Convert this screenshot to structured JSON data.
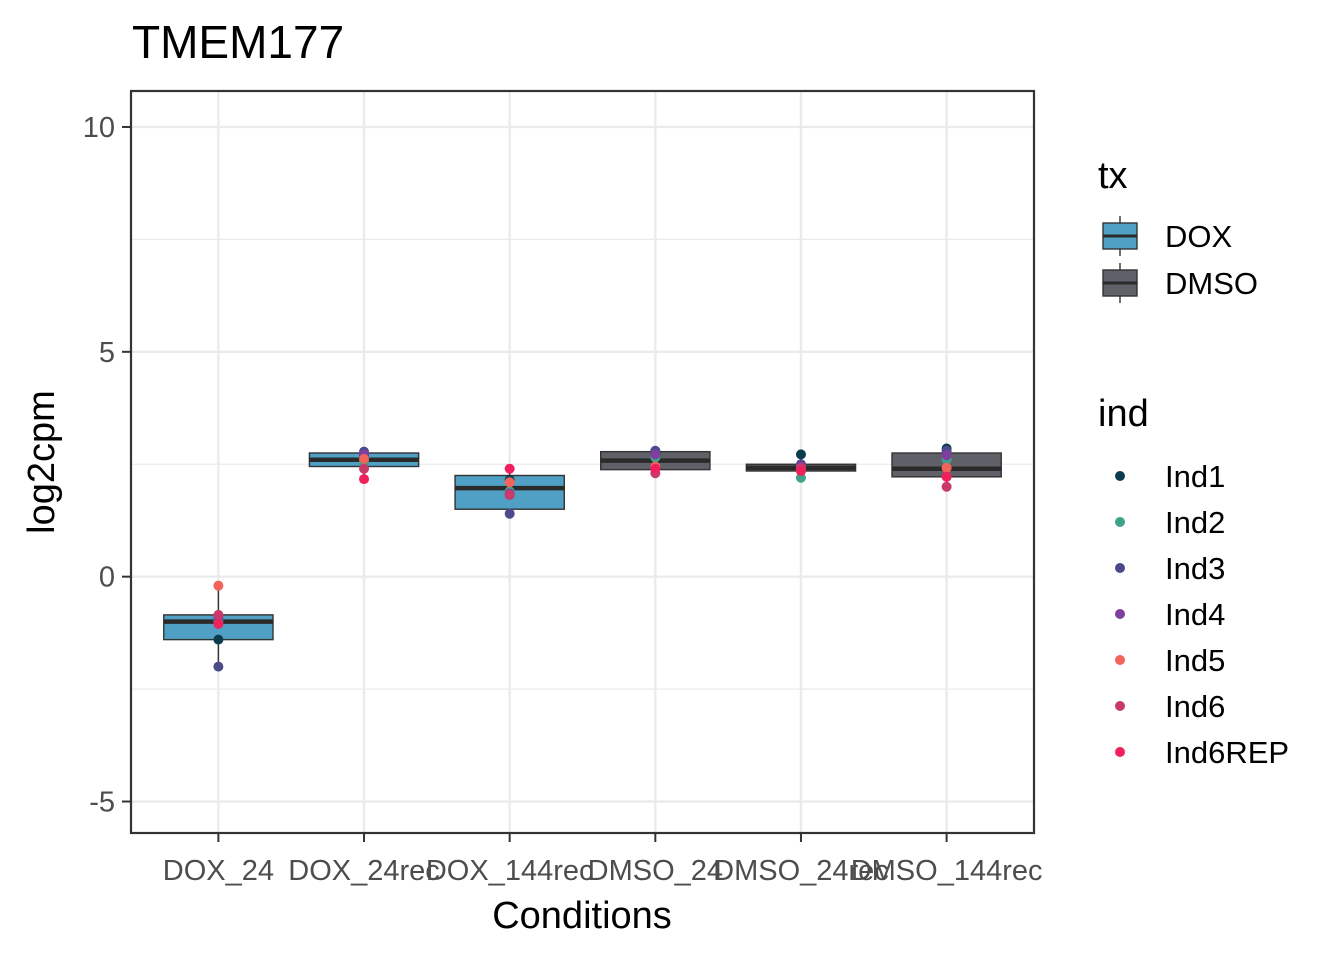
{
  "chart_data": {
    "type": "boxplot",
    "title": "TMEM177",
    "xlabel": "Conditions",
    "ylabel": "log2cpm",
    "ylim": [
      -5.7,
      10.8
    ],
    "yticks": [
      -5,
      0,
      5,
      10
    ],
    "ytick_labels": [
      "-5",
      "0",
      "5",
      "10"
    ],
    "grid": true,
    "legend_position": "right",
    "categories": [
      "DOX_24",
      "DOX_24rec",
      "DOX_144rec",
      "DMSO_24",
      "DMSO_24rec",
      "DMSO_144rec"
    ],
    "tx": {
      "title": "tx",
      "entries": [
        {
          "name": "DOX",
          "color": "#4fa0c4"
        },
        {
          "name": "DMSO",
          "color": "#5f6068"
        }
      ]
    },
    "ind": {
      "title": "ind",
      "entries": [
        {
          "name": "Ind1",
          "color": "#0b3b4f"
        },
        {
          "name": "Ind2",
          "color": "#3fa38a"
        },
        {
          "name": "Ind3",
          "color": "#4b4a8a"
        },
        {
          "name": "Ind4",
          "color": "#7e3fa0"
        },
        {
          "name": "Ind5",
          "color": "#f2645a"
        },
        {
          "name": "Ind6",
          "color": "#c83a6a"
        },
        {
          "name": "Ind6REP",
          "color": "#f0205c"
        }
      ]
    },
    "boxes": [
      {
        "category": "DOX_24",
        "tx": "DOX",
        "q1": -1.4,
        "median": -1.0,
        "q3": -0.85,
        "whisker_low": -2.0,
        "whisker_high": -0.2
      },
      {
        "category": "DOX_24rec",
        "tx": "DOX",
        "q1": 2.45,
        "median": 2.6,
        "q3": 2.75,
        "whisker_low": 2.15,
        "whisker_high": 2.8
      },
      {
        "category": "DOX_144rec",
        "tx": "DOX",
        "q1": 1.5,
        "median": 1.97,
        "q3": 2.25,
        "whisker_low": 1.4,
        "whisker_high": 2.4
      },
      {
        "category": "DMSO_24",
        "tx": "DMSO",
        "q1": 2.38,
        "median": 2.58,
        "q3": 2.78,
        "whisker_low": 2.3,
        "whisker_high": 2.8
      },
      {
        "category": "DMSO_24rec",
        "tx": "DMSO",
        "q1": 2.35,
        "median": 2.42,
        "q3": 2.5,
        "whisker_low": 2.2,
        "whisker_high": 2.72
      },
      {
        "category": "DMSO_144rec",
        "tx": "DMSO",
        "q1": 2.22,
        "median": 2.4,
        "q3": 2.75,
        "whisker_low": 2.0,
        "whisker_high": 2.85
      }
    ],
    "points": [
      {
        "category": "DOX_24",
        "ind": "Ind1",
        "y": -1.4
      },
      {
        "category": "DOX_24",
        "ind": "Ind2",
        "y": -1.0
      },
      {
        "category": "DOX_24",
        "ind": "Ind3",
        "y": -2.0
      },
      {
        "category": "DOX_24",
        "ind": "Ind4",
        "y": -0.9
      },
      {
        "category": "DOX_24",
        "ind": "Ind5",
        "y": -0.2
      },
      {
        "category": "DOX_24",
        "ind": "Ind6",
        "y": -0.85
      },
      {
        "category": "DOX_24",
        "ind": "Ind6REP",
        "y": -1.05
      },
      {
        "category": "DOX_24rec",
        "ind": "Ind1",
        "y": 2.7
      },
      {
        "category": "DOX_24rec",
        "ind": "Ind2",
        "y": 2.55
      },
      {
        "category": "DOX_24rec",
        "ind": "Ind3",
        "y": 2.78
      },
      {
        "category": "DOX_24rec",
        "ind": "Ind4",
        "y": 2.72
      },
      {
        "category": "DOX_24rec",
        "ind": "Ind5",
        "y": 2.62
      },
      {
        "category": "DOX_24rec",
        "ind": "Ind6",
        "y": 2.4
      },
      {
        "category": "DOX_24rec",
        "ind": "Ind6REP",
        "y": 2.17
      },
      {
        "category": "DOX_144rec",
        "ind": "Ind1",
        "y": 2.15
      },
      {
        "category": "DOX_144rec",
        "ind": "Ind2",
        "y": 1.9
      },
      {
        "category": "DOX_144rec",
        "ind": "Ind3",
        "y": 1.4
      },
      {
        "category": "DOX_144rec",
        "ind": "Ind4",
        "y": 1.85
      },
      {
        "category": "DOX_144rec",
        "ind": "Ind5",
        "y": 2.1
      },
      {
        "category": "DOX_144rec",
        "ind": "Ind6",
        "y": 1.82
      },
      {
        "category": "DOX_144rec",
        "ind": "Ind6REP",
        "y": 2.4
      },
      {
        "category": "DMSO_24",
        "ind": "Ind1",
        "y": 2.75
      },
      {
        "category": "DMSO_24",
        "ind": "Ind2",
        "y": 2.65
      },
      {
        "category": "DMSO_24",
        "ind": "Ind3",
        "y": 2.8
      },
      {
        "category": "DMSO_24",
        "ind": "Ind4",
        "y": 2.72
      },
      {
        "category": "DMSO_24",
        "ind": "Ind5",
        "y": 2.45
      },
      {
        "category": "DMSO_24",
        "ind": "Ind6",
        "y": 2.3
      },
      {
        "category": "DMSO_24",
        "ind": "Ind6REP",
        "y": 2.4
      },
      {
        "category": "DMSO_24rec",
        "ind": "Ind1",
        "y": 2.72
      },
      {
        "category": "DMSO_24rec",
        "ind": "Ind2",
        "y": 2.2
      },
      {
        "category": "DMSO_24rec",
        "ind": "Ind3",
        "y": 2.5
      },
      {
        "category": "DMSO_24rec",
        "ind": "Ind4",
        "y": 2.45
      },
      {
        "category": "DMSO_24rec",
        "ind": "Ind5",
        "y": 2.38
      },
      {
        "category": "DMSO_24rec",
        "ind": "Ind6",
        "y": 2.42
      },
      {
        "category": "DMSO_24rec",
        "ind": "Ind6REP",
        "y": 2.35
      },
      {
        "category": "DMSO_144rec",
        "ind": "Ind1",
        "y": 2.85
      },
      {
        "category": "DMSO_144rec",
        "ind": "Ind2",
        "y": 2.6
      },
      {
        "category": "DMSO_144rec",
        "ind": "Ind3",
        "y": 2.8
      },
      {
        "category": "DMSO_144rec",
        "ind": "Ind4",
        "y": 2.7
      },
      {
        "category": "DMSO_144rec",
        "ind": "Ind5",
        "y": 2.42
      },
      {
        "category": "DMSO_144rec",
        "ind": "Ind6",
        "y": 2.0
      },
      {
        "category": "DMSO_144rec",
        "ind": "Ind6REP",
        "y": 2.22
      }
    ]
  }
}
